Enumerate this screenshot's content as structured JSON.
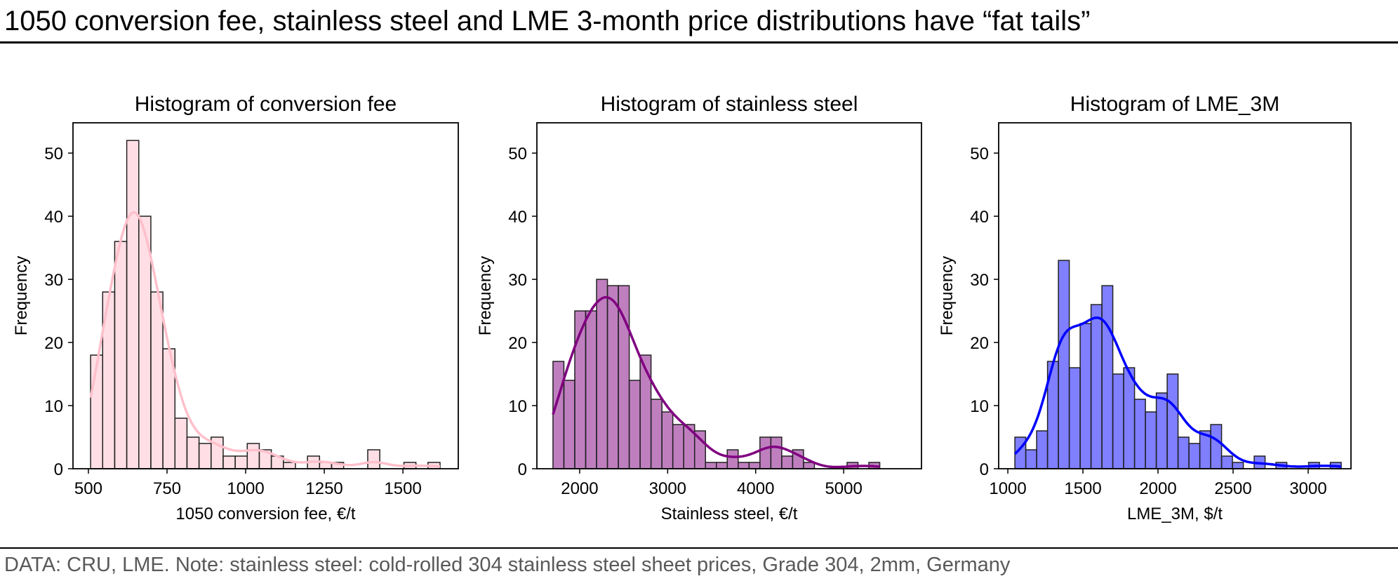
{
  "headline": "1050 conversion fee, stainless steel and LME 3-month price distributions have “fat tails”",
  "footnote": "DATA: CRU, LME. Note: stainless steel: cold-rolled 304 stainless steel sheet prices, Grade 304, 2mm, Germany",
  "chart_data": [
    {
      "type": "bar",
      "subtype": "histogram-with-kde",
      "title": "Histogram of conversion fee",
      "xlabel": "1050 conversion fee, €/t",
      "ylabel": "Frequency",
      "color": "#ffc0cb",
      "fill_opacity": 0.5,
      "kde_color": "#ffc0cb",
      "bin_start": 507,
      "bin_end": 1618,
      "values": [
        18,
        28,
        36,
        52,
        40,
        28,
        19,
        8,
        5,
        4,
        5,
        2,
        2,
        4,
        3,
        2,
        1,
        0,
        2,
        1,
        1,
        0,
        0,
        3,
        0,
        0,
        1,
        0,
        1
      ],
      "xlim": [
        451,
        1676
      ],
      "ylim": [
        0,
        54.8
      ],
      "xticks": [
        500,
        750,
        1000,
        1250,
        1500
      ],
      "xtick_labels": [
        "500",
        "750",
        "1000",
        "1250",
        "1500"
      ],
      "yticks": [
        0,
        10,
        20,
        30,
        40,
        50
      ],
      "ytick_labels": [
        "0",
        "10",
        "20",
        "30",
        "40",
        "50"
      ],
      "grid": false
    },
    {
      "type": "bar",
      "subtype": "histogram-with-kde",
      "title": "Histogram of stainless steel",
      "xlabel": "Stainless steel, €/t",
      "ylabel": "Frequency",
      "color": "#800080",
      "fill_opacity": 0.5,
      "kde_color": "#800080",
      "bin_start": 1697,
      "bin_end": 5410,
      "values": [
        17,
        14,
        25,
        25,
        30,
        29,
        29,
        14,
        18,
        11,
        9,
        7,
        7,
        6,
        1,
        1,
        3,
        1,
        1,
        5,
        5,
        2,
        3,
        1,
        0,
        0,
        0,
        1,
        0,
        1
      ],
      "xlim": [
        1514,
        5884
      ],
      "ylim": [
        0,
        54.8
      ],
      "xticks": [
        2000,
        3000,
        4000,
        5000
      ],
      "xtick_labels": [
        "2000",
        "3000",
        "4000",
        "5000"
      ],
      "yticks": [
        0,
        10,
        20,
        30,
        40,
        50
      ],
      "ytick_labels": [
        "0",
        "10",
        "20",
        "30",
        "40",
        "50"
      ],
      "grid": false
    },
    {
      "type": "bar",
      "subtype": "histogram-with-kde",
      "title": "Histogram of LME_3M",
      "xlabel": "LME_3M, $/t",
      "ylabel": "Frequency",
      "color": "#0000ff",
      "fill_opacity": 0.5,
      "kde_color": "#0000ff",
      "bin_start": 1047,
      "bin_end": 3220,
      "values": [
        5,
        3,
        6,
        17,
        33,
        16,
        23,
        26,
        29,
        15,
        16,
        11,
        9,
        12,
        15,
        5,
        4,
        6,
        7,
        2,
        1,
        0,
        2,
        0,
        1,
        0,
        0,
        1,
        0,
        1
      ],
      "xlim": [
        939,
        3285
      ],
      "ylim": [
        0,
        54.8
      ],
      "xticks": [
        1000,
        1500,
        2000,
        2500,
        3000
      ],
      "xtick_labels": [
        "1000",
        "1500",
        "2000",
        "2500",
        "3000"
      ],
      "yticks": [
        0,
        10,
        20,
        30,
        40,
        50
      ],
      "ytick_labels": [
        "0",
        "10",
        "20",
        "30",
        "40",
        "50"
      ],
      "grid": false
    }
  ]
}
